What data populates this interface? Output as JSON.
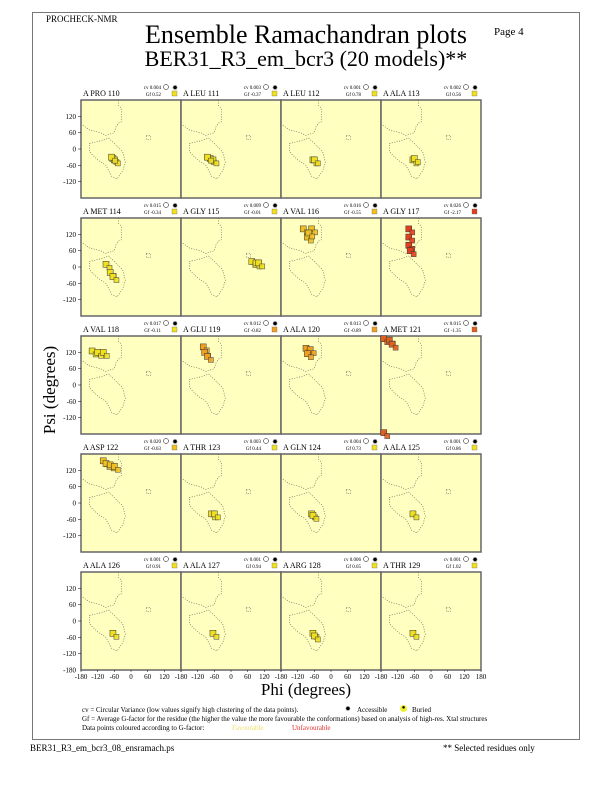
{
  "header": {
    "program": "PROCHECK-NMR",
    "page": "Page  4"
  },
  "footer": {
    "file": "BER31_R3_em_bcr3_08_ensramach.ps",
    "note": "** Selected residues only"
  },
  "legend": {
    "cv": "cv = Circular Variance (low values signify high clustering of the data points).",
    "accessible": "Accessible",
    "buried": "Buried",
    "gf": "Gf = Average G-factor for the residue (the higher the value the more favourable the conformations) based on analysis of high-res. Xtal structures",
    "colour": "Data points coloured according to G-factor:",
    "favourable": "Favourable",
    "unfavourable": "Unfavourable"
  },
  "chart_data": {
    "type": "scatter",
    "title": "Ensemble Ramachandran plots",
    "subtitle": "BER31_R3_em_bcr3 (20 models)**",
    "xlabel": "Phi (degrees)",
    "ylabel": "Psi (degrees)",
    "xlim": [
      -180,
      180
    ],
    "ylim": [
      -180,
      180
    ],
    "xticks": [
      "-180",
      "-120",
      "-60",
      "0",
      "60",
      "120",
      "180"
    ],
    "yticks": [
      "120",
      "60",
      "0",
      "-60",
      "-120"
    ],
    "ybottom": "-180",
    "panels": [
      {
        "label": "A PRO 110",
        "cv": "cv 0.004",
        "gf": "Gf 0.52",
        "gfcolor": "#f0e020",
        "points": [
          [
            -65,
            -35
          ],
          [
            -60,
            -40
          ],
          [
            -70,
            -30
          ]
        ]
      },
      {
        "label": "A LEU 111",
        "cv": "cv 0.003",
        "gf": "Gf -0.37",
        "gfcolor": "#f0e020",
        "points": [
          [
            -75,
            -35
          ],
          [
            -65,
            -40
          ],
          [
            -85,
            -30
          ]
        ]
      },
      {
        "label": "A LEU 112",
        "cv": "cv 0.001",
        "gf": "Gf 0.78",
        "gfcolor": "#f0e020",
        "points": [
          [
            -65,
            -40
          ],
          [
            -60,
            -40
          ]
        ]
      },
      {
        "label": "A ALA 113",
        "cv": "cv 0.002",
        "gf": "Gf 0.56",
        "gfcolor": "#f0e020",
        "points": [
          [
            -65,
            -40
          ],
          [
            -60,
            -35
          ]
        ]
      },
      {
        "label": "A MET 114",
        "cv": "cv 0.015",
        "gf": "Gf -0.34",
        "gfcolor": "#f0e020",
        "points": [
          [
            -90,
            10
          ],
          [
            -75,
            -20
          ],
          [
            -65,
            -35
          ]
        ]
      },
      {
        "label": "A GLY 115",
        "cv": "cv 0.009",
        "gf": "Gf -0.01",
        "gfcolor": "#f0e020",
        "points": [
          [
            75,
            20
          ],
          [
            90,
            15
          ],
          [
            100,
            15
          ]
        ]
      },
      {
        "label": "A VAL 116",
        "cv": "cv 0.016",
        "gf": "Gf -0.55",
        "gfcolor": "#f0c020",
        "points": [
          [
            -100,
            140
          ],
          [
            -70,
            140
          ],
          [
            -85,
            110
          ],
          [
            -80,
            125
          ]
        ]
      },
      {
        "label": "A GLY 117",
        "cv": "cv 0.026",
        "gf": "Gf -2.17",
        "gfcolor": "#e04020",
        "points": [
          [
            -80,
            140
          ],
          [
            -80,
            110
          ],
          [
            -80,
            80
          ],
          [
            -75,
            60
          ]
        ]
      },
      {
        "label": "A VAL 118",
        "cv": "cv 0.017",
        "gf": "Gf -0.11",
        "gfcolor": "#f0e020",
        "points": [
          [
            -140,
            125
          ],
          [
            -120,
            120
          ],
          [
            -100,
            120
          ]
        ]
      },
      {
        "label": "A GLU 119",
        "cv": "cv 0.012",
        "gf": "Gf -0.82",
        "gfcolor": "#f0a020",
        "points": [
          [
            -100,
            140
          ],
          [
            -95,
            120
          ],
          [
            -85,
            105
          ]
        ]
      },
      {
        "label": "A ALA 120",
        "cv": "cv 0.013",
        "gf": "Gf -0.89",
        "gfcolor": "#f0a020",
        "points": [
          [
            -90,
            135
          ],
          [
            -75,
            130
          ],
          [
            -85,
            115
          ]
        ]
      },
      {
        "label": "A MET 121",
        "cv": "cv 0.015",
        "gf": "Gf -1.35",
        "gfcolor": "#e06020",
        "points": [
          [
            -170,
            170
          ],
          [
            -150,
            165
          ],
          [
            -140,
            150
          ],
          [
            -170,
            -175
          ]
        ]
      },
      {
        "label": "A ASP 122",
        "cv": "cv 0.020",
        "gf": "Gf -0.63",
        "gfcolor": "#f0c020",
        "points": [
          [
            -100,
            155
          ],
          [
            -90,
            145
          ],
          [
            -75,
            140
          ],
          [
            -60,
            135
          ]
        ]
      },
      {
        "label": "A THR 123",
        "cv": "cv 0.003",
        "gf": "Gf 0.44",
        "gfcolor": "#f0e020",
        "points": [
          [
            -70,
            -40
          ],
          [
            -60,
            -40
          ]
        ]
      },
      {
        "label": "A GLN 124",
        "cv": "cv 0.004",
        "gf": "Gf 0.73",
        "gfcolor": "#f0e020",
        "points": [
          [
            -70,
            -40
          ],
          [
            -65,
            -45
          ]
        ]
      },
      {
        "label": "A ALA 125",
        "cv": "cv 0.001",
        "gf": "Gf 0.86",
        "gfcolor": "#f0e020",
        "points": [
          [
            -65,
            -40
          ]
        ]
      },
      {
        "label": "A ALA 126",
        "cv": "cv 0.001",
        "gf": "Gf 0.91",
        "gfcolor": "#f0e020",
        "points": [
          [
            -65,
            -45
          ]
        ]
      },
      {
        "label": "A ALA 127",
        "cv": "cv 0.001",
        "gf": "Gf 0.94",
        "gfcolor": "#f0e020",
        "points": [
          [
            -65,
            -45
          ]
        ]
      },
      {
        "label": "A ARG 128",
        "cv": "cv 0.006",
        "gf": "Gf 0.65",
        "gfcolor": "#f0e020",
        "points": [
          [
            -65,
            -45
          ],
          [
            -60,
            -55
          ]
        ]
      },
      {
        "label": "A THR 129",
        "cv": "cv 0.001",
        "gf": "Gf 1.02",
        "gfcolor": "#f0e020",
        "points": [
          [
            -65,
            -45
          ]
        ]
      }
    ]
  }
}
